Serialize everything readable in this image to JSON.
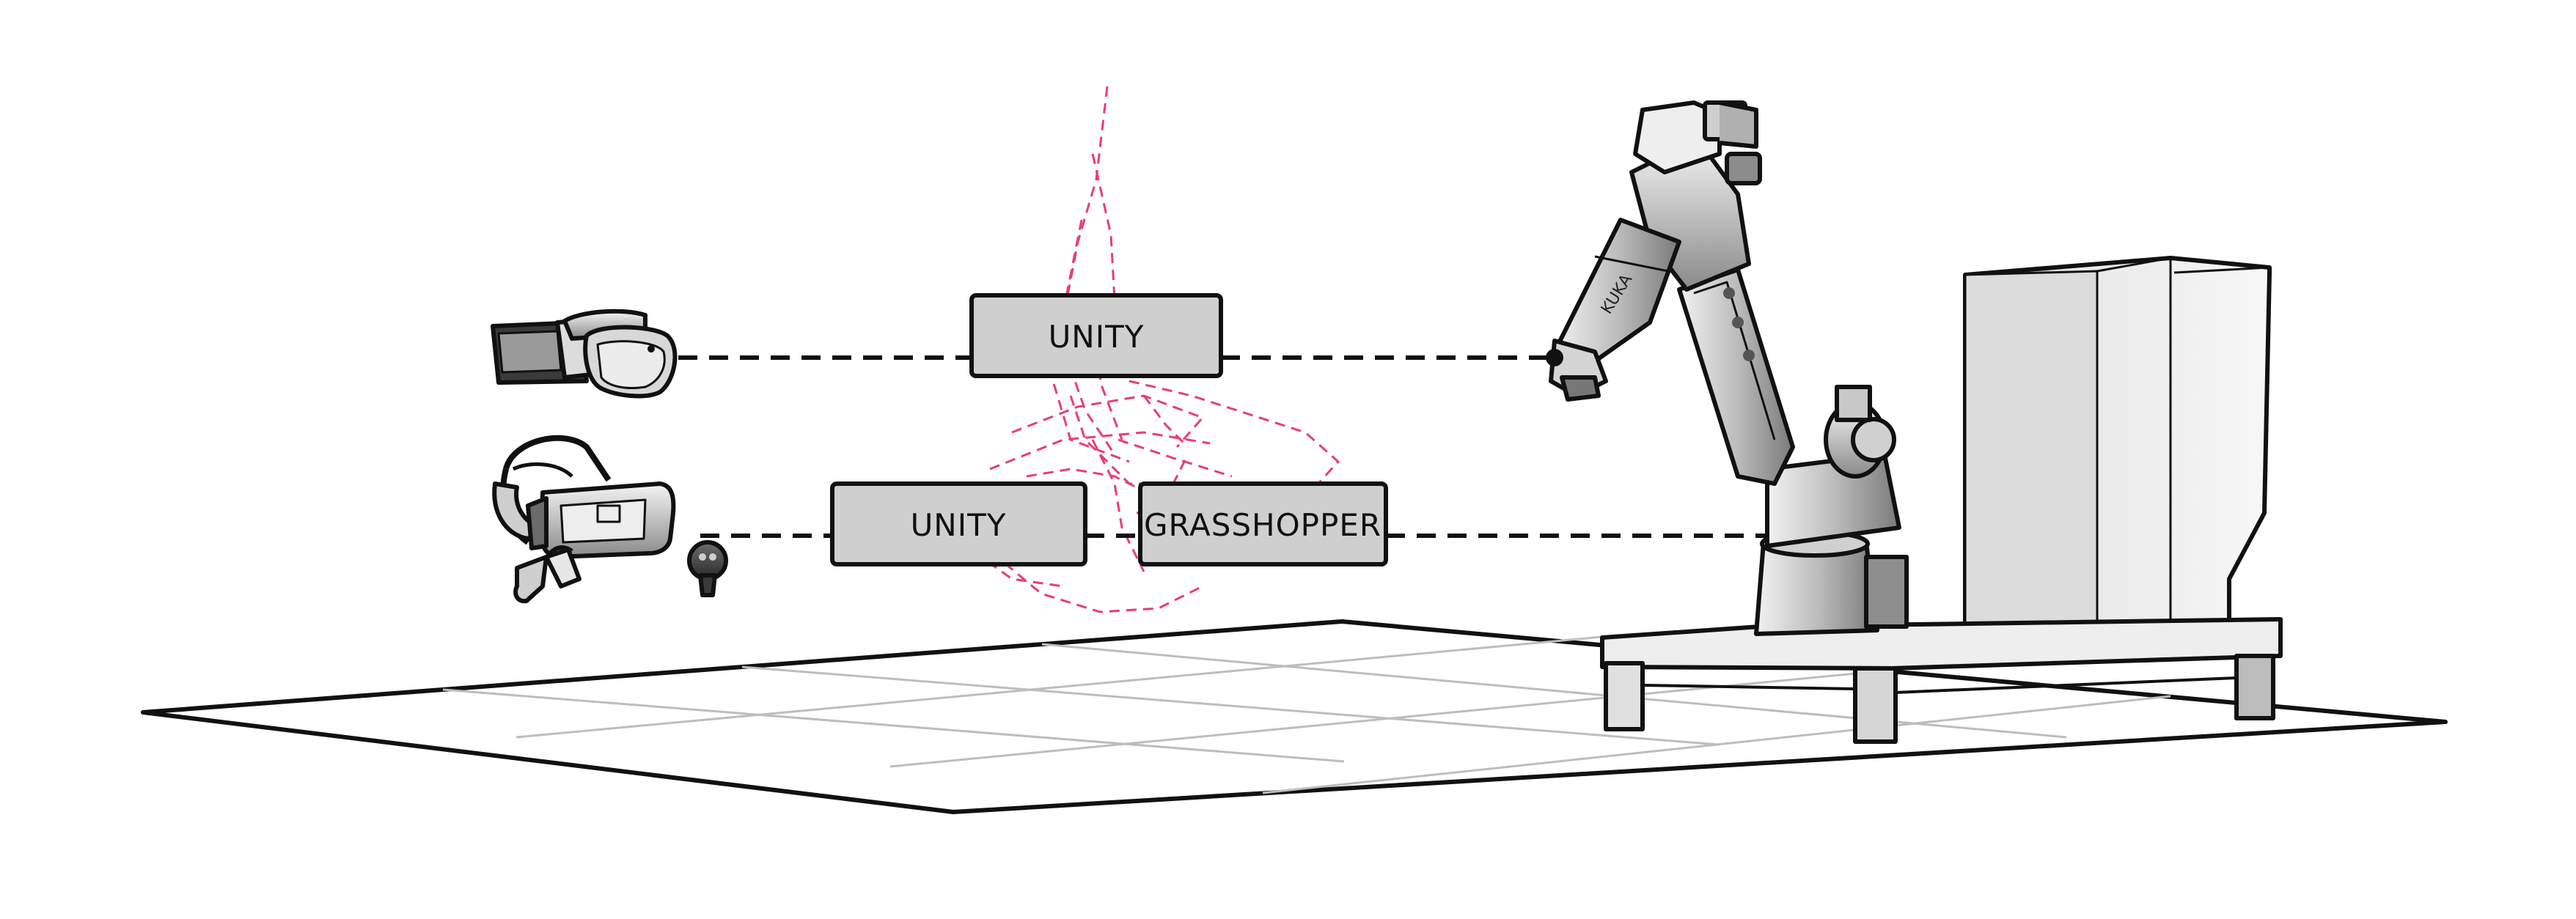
{
  "diagram": {
    "nodes": {
      "unity_top": "UNITY",
      "unity_bottom": "UNITY",
      "grasshopper": "GRASSHOPPER"
    },
    "colors": {
      "line": "#111111",
      "box_fill": "#cfcfcf",
      "box_stroke": "#111111",
      "trajectory": "#e8336d",
      "floor_fill": "#ffffff",
      "floor_grid": "#bdbdbd"
    },
    "icons": {
      "ar_headset": "ar-headset-icon",
      "vr_headset": "vr-headset-icon",
      "vr_controllers": "vr-controller-icon",
      "robot_arm": "industrial-robot-arm",
      "cabinet": "control-cabinet"
    },
    "connections": [
      {
        "from": "ar_headset",
        "to": "unity_top"
      },
      {
        "from": "unity_top",
        "to": "robot_arm"
      },
      {
        "from": "vr_headset",
        "to": "unity_bottom"
      },
      {
        "from": "unity_bottom",
        "to": "grasshopper"
      },
      {
        "from": "grasshopper",
        "to": "robot_arm"
      }
    ]
  }
}
